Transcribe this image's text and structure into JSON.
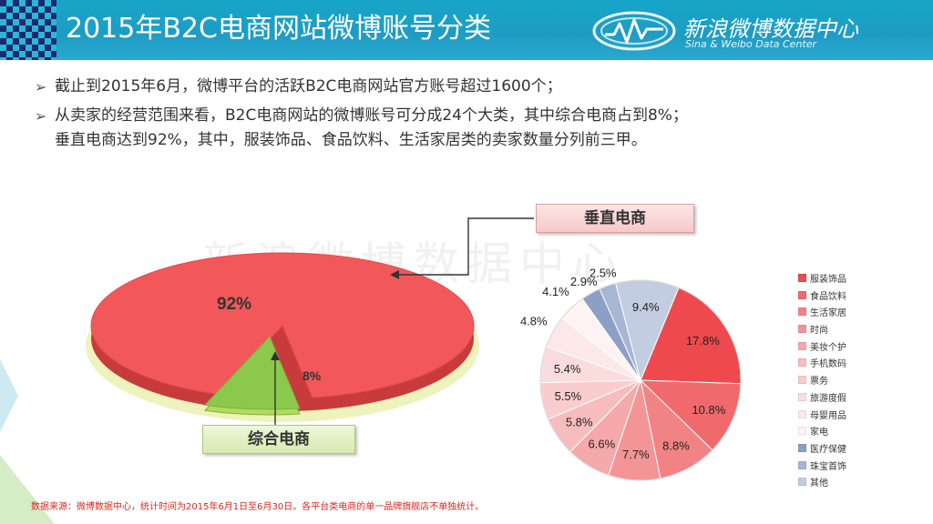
{
  "header": {
    "title": "2015年B2C电商网站微博账号分类",
    "logo_name": "新浪微博数据中心",
    "logo_sub": "Sina & Weibo Data Center"
  },
  "bullets": [
    {
      "lines": [
        "截止到2015年6月，微博平台的活跃B2C电商网站官方账号超过1600个；"
      ]
    },
    {
      "lines": [
        "从卖家的经营范围来看，B2C电商网站的微博账号可分成24个大类，其中综合电商占到8%；",
        "垂直电商达到92%，其中，服装饰品、食品饮料、生活家居类的卖家数量分列前三甲。"
      ]
    }
  ],
  "watermark": "新浪微博数据中心",
  "callouts": {
    "vertical": "垂直电商",
    "comprehensive": "综合电商"
  },
  "chart_data": [
    {
      "type": "pie",
      "title": "",
      "categories": [
        "垂直电商",
        "综合电商"
      ],
      "values": [
        92,
        8
      ],
      "data_labels": [
        "92%",
        "8%"
      ],
      "colors": [
        "#f2585a",
        "#8cc84b"
      ]
    },
    {
      "type": "pie",
      "title": "",
      "categories": [
        "服装饰品",
        "食品饮料",
        "生活家居",
        "时尚",
        "美妆个护",
        "手机数码",
        "票务",
        "旅游度假",
        "母婴用品",
        "家电",
        "医疗保健",
        "珠宝首饰",
        "其他"
      ],
      "values": [
        17.8,
        10.8,
        8.8,
        7.7,
        6.6,
        5.8,
        5.5,
        5.4,
        4.8,
        4.1,
        2.9,
        2.5,
        9.4
      ],
      "data_labels": [
        "17.8%",
        "10.8%",
        "8.8%",
        "7.7%",
        "6.6%",
        "5.8%",
        "5.5%",
        "5.4%",
        "4.8%",
        "4.1%",
        "2.9%",
        "2.5%",
        "9.4%"
      ],
      "colors": [
        "#ee4a4d",
        "#f06a6d",
        "#f28385",
        "#f39597",
        "#f5a9aa",
        "#f7bcbd",
        "#f9cdce",
        "#fbdcdd",
        "#fce8e8",
        "#fdf3f3",
        "#8c9fc6",
        "#a7b6d3",
        "#c2cde2"
      ],
      "legend_position": "right"
    }
  ],
  "footnote": "数据来源：微博数据中心，统计时间为2015年6月1日至6月30日。各平台类电商的单一品牌旗舰店不单独统计。"
}
